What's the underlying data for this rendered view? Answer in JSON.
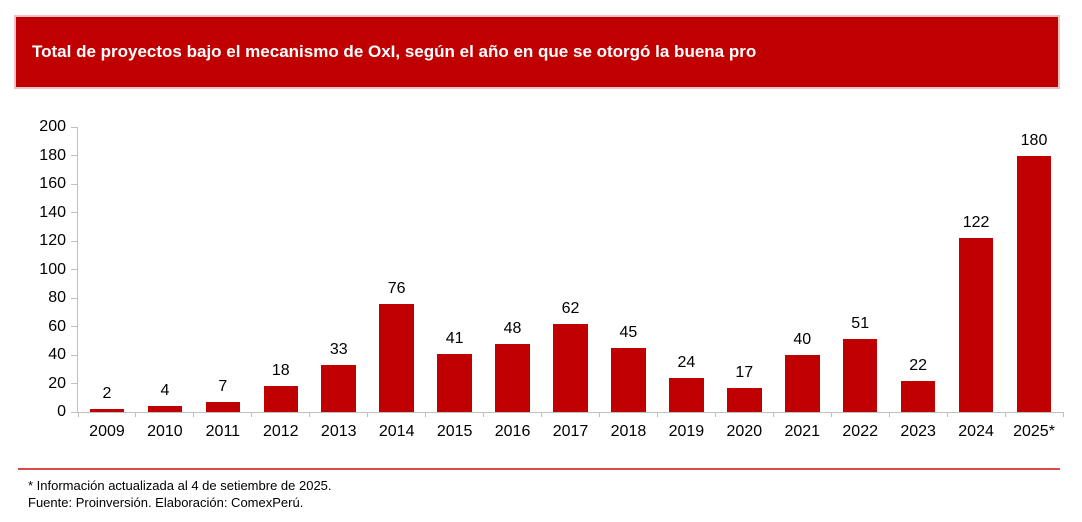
{
  "banner": {
    "title": "Total de proyectos bajo el mecanismo de OxI, según el año en que se otorgó la buena pro"
  },
  "chart_data": {
    "type": "bar",
    "title": "Total de proyectos bajo el mecanismo de OxI, según el año en que se otorgó la buena pro",
    "categories": [
      "2009",
      "2010",
      "2011",
      "2012",
      "2013",
      "2014",
      "2015",
      "2016",
      "2017",
      "2018",
      "2019",
      "2020",
      "2021",
      "2022",
      "2023",
      "2024",
      "2025*"
    ],
    "values": [
      2,
      4,
      7,
      18,
      33,
      76,
      41,
      48,
      62,
      45,
      24,
      17,
      40,
      51,
      22,
      122,
      180
    ],
    "xlabel": "",
    "ylabel": "",
    "ylim": [
      0,
      200
    ],
    "yticks": [
      0,
      20,
      40,
      60,
      80,
      100,
      120,
      140,
      160,
      180,
      200
    ],
    "grid": false,
    "legend_position": "none",
    "data_labels": true,
    "bar_color": "#C00000",
    "axis_color": "#BFBFBF"
  },
  "footer": {
    "note": "* Información actualizada al 4 de setiembre de 2025.",
    "source": "Fuente: Proinversión. Elaboración: ComexPerú.",
    "divider_color": "#D94A4A"
  },
  "colors": {
    "accent_red": "#C00000",
    "banner_border": "#eec0c0",
    "text": "#000000"
  }
}
